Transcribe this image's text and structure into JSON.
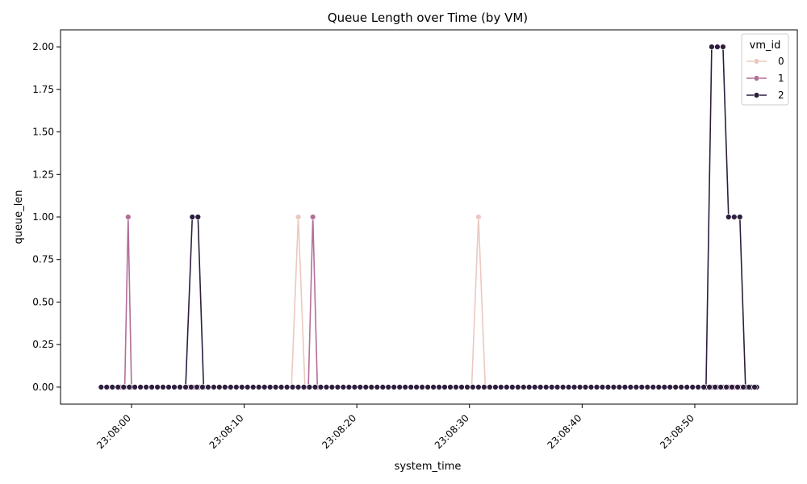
{
  "chart_data": {
    "type": "line",
    "title": "Queue Length over Time (by VM)",
    "xlabel": "system_time",
    "ylabel": "queue_len",
    "x_unit": "seconds",
    "x_range_seconds": [
      -2.7,
      55.5
    ],
    "xlim_seconds": [
      -6.3,
      59.1
    ],
    "ylim": [
      -0.1,
      2.1
    ],
    "x_ticks": [
      {
        "value": 0,
        "label": "23:08:00"
      },
      {
        "value": 10,
        "label": "23:08:10"
      },
      {
        "value": 20,
        "label": "23:08:20"
      },
      {
        "value": 30,
        "label": "23:08:30"
      },
      {
        "value": 40,
        "label": "23:08:40"
      },
      {
        "value": 50,
        "label": "23:08:50"
      }
    ],
    "y_ticks": [
      "0.00",
      "0.25",
      "0.50",
      "0.75",
      "1.00",
      "1.25",
      "1.50",
      "1.75",
      "2.00"
    ],
    "y_tick_values": [
      0,
      0.25,
      0.5,
      0.75,
      1.0,
      1.25,
      1.5,
      1.75,
      2.0
    ],
    "legend": {
      "title": "vm_id",
      "position": "top-right"
    },
    "series": [
      {
        "name": "0",
        "color": "#ebc9c0",
        "points": [
          {
            "x": -2.0,
            "y": 0
          },
          {
            "x": 14.2,
            "y": 0
          },
          {
            "x": 14.8,
            "y": 1
          },
          {
            "x": 15.4,
            "y": 0
          },
          {
            "x": 30.2,
            "y": 0
          },
          {
            "x": 30.8,
            "y": 1
          },
          {
            "x": 31.4,
            "y": 0
          },
          {
            "x": 55.5,
            "y": 0
          }
        ]
      },
      {
        "name": "1",
        "color": "#b36e99",
        "points": [
          {
            "x": -1.0,
            "y": 0
          },
          {
            "x": -0.6,
            "y": 0
          },
          {
            "x": -0.3,
            "y": 1
          },
          {
            "x": 0.0,
            "y": 0
          },
          {
            "x": 5.0,
            "y": 0
          },
          {
            "x": 5.5,
            "y": 0
          },
          {
            "x": 6.0,
            "y": 0
          },
          {
            "x": 15.7,
            "y": 0
          },
          {
            "x": 16.1,
            "y": 1
          },
          {
            "x": 16.5,
            "y": 0
          },
          {
            "x": 51.5,
            "y": 0
          },
          {
            "x": 52.0,
            "y": 0
          },
          {
            "x": 52.5,
            "y": 0
          },
          {
            "x": 53.0,
            "y": 0
          },
          {
            "x": 53.5,
            "y": 0
          },
          {
            "x": 54.0,
            "y": 0
          },
          {
            "x": 54.5,
            "y": 0
          }
        ]
      },
      {
        "name": "2",
        "color": "#2d1e3e",
        "points": [
          {
            "x": -2.7,
            "y": 0
          },
          {
            "x": 4.8,
            "y": 0
          },
          {
            "x": 5.4,
            "y": 1
          },
          {
            "x": 5.9,
            "y": 1
          },
          {
            "x": 6.4,
            "y": 0
          },
          {
            "x": 51.0,
            "y": 0
          },
          {
            "x": 51.5,
            "y": 2
          },
          {
            "x": 52.0,
            "y": 2
          },
          {
            "x": 52.5,
            "y": 2
          },
          {
            "x": 53.0,
            "y": 1
          },
          {
            "x": 53.5,
            "y": 1
          },
          {
            "x": 54.0,
            "y": 1
          },
          {
            "x": 54.5,
            "y": 0
          },
          {
            "x": 55.0,
            "y": 0
          },
          {
            "x": 55.5,
            "y": 0
          }
        ],
        "dense_zero_markers": {
          "from": -2.7,
          "to": 55.5,
          "step": 0.5
        }
      }
    ],
    "grid": false
  }
}
